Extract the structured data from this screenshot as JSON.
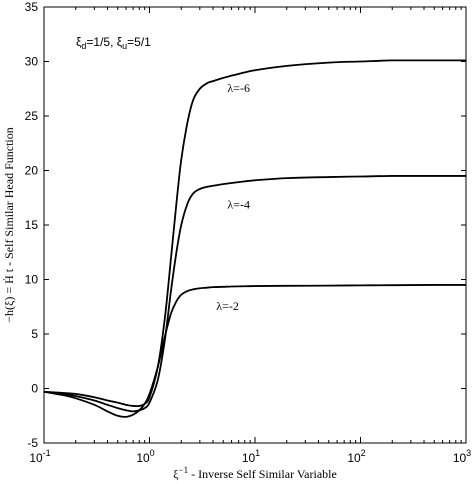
{
  "chart_data": {
    "type": "line",
    "title": "",
    "xlabel_prefix": "ξ",
    "xlabel_sup": "−1",
    "xlabel_rest": " - Inverse Self Similar Variable",
    "ylabel": "−h(ξ) = Ḣ t - Self Similar Head Function",
    "xscale": "log",
    "xlim": [
      0.1,
      1000
    ],
    "ylim": [
      -5,
      35
    ],
    "yticks": [
      -5,
      0,
      5,
      10,
      15,
      20,
      25,
      30,
      35
    ],
    "xticks": [
      {
        "value": 0.1,
        "base": "10",
        "exp": "-1"
      },
      {
        "value": 1,
        "base": "10",
        "exp": "0"
      },
      {
        "value": 10,
        "base": "10",
        "exp": "1"
      },
      {
        "value": 100,
        "base": "10",
        "exp": "2"
      },
      {
        "value": 1000,
        "base": "10",
        "exp": "3"
      }
    ],
    "parameter_text": {
      "xi_d_sym": "ξ",
      "xi_d_sub": "d",
      "xi_d_val": "=1/5, ",
      "xi_u_sym": "ξ",
      "xi_u_sub": "u",
      "xi_u_val": "=5/1"
    },
    "series": [
      {
        "label": "λ=-6",
        "x": [
          0.1,
          0.15,
          0.2,
          0.3,
          0.4,
          0.5,
          0.6,
          0.7,
          0.8,
          0.9,
          1.0,
          1.2,
          1.4,
          1.6,
          1.8,
          2.0,
          2.3,
          2.6,
          3.0,
          3.5,
          4,
          5,
          6,
          8,
          10,
          20,
          50,
          100,
          200,
          500,
          1000
        ],
        "y": [
          -0.3,
          -0.4,
          -0.5,
          -0.8,
          -1.1,
          -1.3,
          -1.5,
          -1.6,
          -1.6,
          -1.4,
          -0.8,
          2.0,
          6.5,
          12.0,
          17.0,
          21.0,
          24.5,
          26.5,
          27.5,
          28.0,
          28.2,
          28.5,
          28.7,
          29.0,
          29.2,
          29.6,
          29.9,
          30.0,
          30.1,
          30.1,
          30.1
        ]
      },
      {
        "label": "λ=-4",
        "x": [
          0.1,
          0.15,
          0.2,
          0.3,
          0.4,
          0.5,
          0.6,
          0.7,
          0.8,
          0.9,
          1.0,
          1.2,
          1.4,
          1.6,
          1.8,
          2.0,
          2.3,
          2.6,
          3.0,
          3.5,
          4,
          5,
          6,
          8,
          10,
          20,
          50,
          100,
          200,
          500,
          1000
        ],
        "y": [
          -0.3,
          -0.5,
          -0.7,
          -1.1,
          -1.5,
          -1.8,
          -2.0,
          -2.1,
          -2.0,
          -1.8,
          -1.3,
          0.8,
          4.5,
          9.0,
          12.5,
          15.0,
          17.0,
          17.9,
          18.3,
          18.5,
          18.6,
          18.75,
          18.85,
          19.0,
          19.1,
          19.3,
          19.4,
          19.45,
          19.5,
          19.5,
          19.5
        ]
      },
      {
        "label": "λ=-2",
        "x": [
          0.1,
          0.15,
          0.2,
          0.3,
          0.4,
          0.5,
          0.6,
          0.7,
          0.8,
          0.9,
          1.0,
          1.2,
          1.4,
          1.6,
          1.8,
          2.0,
          2.3,
          2.6,
          3.0,
          3.5,
          4,
          5,
          6,
          8,
          10,
          20,
          50,
          100,
          200,
          500,
          1000
        ],
        "y": [
          -0.3,
          -0.6,
          -0.9,
          -1.5,
          -2.1,
          -2.5,
          -2.6,
          -2.4,
          -2.0,
          -1.4,
          -0.5,
          2.0,
          4.8,
          6.9,
          8.0,
          8.6,
          8.95,
          9.1,
          9.2,
          9.25,
          9.3,
          9.33,
          9.36,
          9.38,
          9.4,
          9.42,
          9.44,
          9.46,
          9.48,
          9.5,
          9.5
        ]
      }
    ],
    "annotations": [
      {
        "text": "λ=-6",
        "x": 7,
        "y": 27.2
      },
      {
        "text": "λ=-4",
        "x": 7,
        "y": 16.5
      },
      {
        "text": "λ=-2",
        "x": 5.5,
        "y": 7.2
      }
    ]
  }
}
